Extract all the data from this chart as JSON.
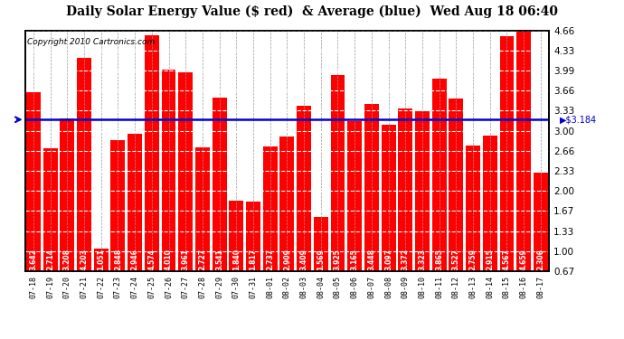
{
  "title": "Daily Solar Energy Value ($ red)  & Average (blue)  Wed Aug 18 06:40",
  "copyright": "Copyright 2010 Cartronics.com",
  "average": 3.184,
  "bar_color": "#ff0000",
  "avg_line_color": "#0000cc",
  "background_color": "#ffffff",
  "grid_color": "#aaaaaa",
  "dates": [
    "07-18",
    "07-19",
    "07-20",
    "07-21",
    "07-22",
    "07-23",
    "07-24",
    "07-25",
    "07-26",
    "07-27",
    "07-28",
    "07-29",
    "07-30",
    "07-31",
    "08-01",
    "08-02",
    "08-03",
    "08-04",
    "08-05",
    "08-06",
    "08-07",
    "08-08",
    "08-09",
    "08-10",
    "08-11",
    "08-12",
    "08-13",
    "08-14",
    "08-15",
    "08-16",
    "08-17"
  ],
  "values": [
    3.642,
    2.714,
    3.208,
    4.203,
    1.051,
    2.848,
    2.946,
    4.574,
    4.01,
    3.961,
    2.727,
    3.541,
    1.84,
    1.817,
    2.737,
    2.909,
    3.409,
    1.569,
    3.925,
    3.165,
    3.448,
    3.097,
    3.372,
    3.323,
    3.865,
    3.527,
    2.759,
    2.915,
    4.567,
    4.659,
    2.306
  ],
  "ylim_min": 0.67,
  "ylim_max": 4.66,
  "yticks": [
    0.67,
    1.0,
    1.33,
    1.67,
    2.0,
    2.33,
    2.66,
    3.0,
    3.33,
    3.66,
    3.99,
    4.33,
    4.66
  ],
  "title_fontsize": 10,
  "copyright_fontsize": 6.5,
  "bar_label_fontsize": 5.5,
  "tick_fontsize": 7.5
}
